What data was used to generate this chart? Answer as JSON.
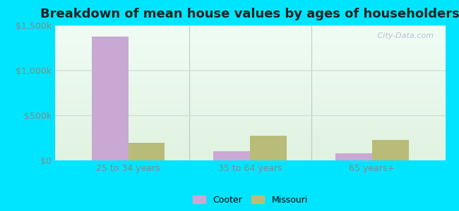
{
  "title": "Breakdown of mean house values by ages of householders",
  "categories": [
    "25 to 34 years",
    "35 to 64 years",
    "65 years+"
  ],
  "cooter_values": [
    1375000,
    100000,
    75000
  ],
  "missouri_values": [
    195000,
    270000,
    230000
  ],
  "cooter_color": "#c9a8d4",
  "missouri_color": "#b8bc78",
  "background_outer": "#00e5ff",
  "ylim": [
    0,
    1500000
  ],
  "yticks": [
    0,
    500000,
    1000000,
    1500000
  ],
  "ytick_labels": [
    "$0",
    "$500k",
    "$1,000k",
    "$1,500k"
  ],
  "bar_width": 0.3,
  "legend_labels": [
    "Cooter",
    "Missouri"
  ],
  "watermark": " City-Data.com",
  "title_fontsize": 13,
  "tick_fontsize": 9,
  "legend_fontsize": 9,
  "tick_color": "#888888",
  "title_color": "#222222",
  "separator_color": "#aaaaaa",
  "grid_color": "#ccddcc"
}
